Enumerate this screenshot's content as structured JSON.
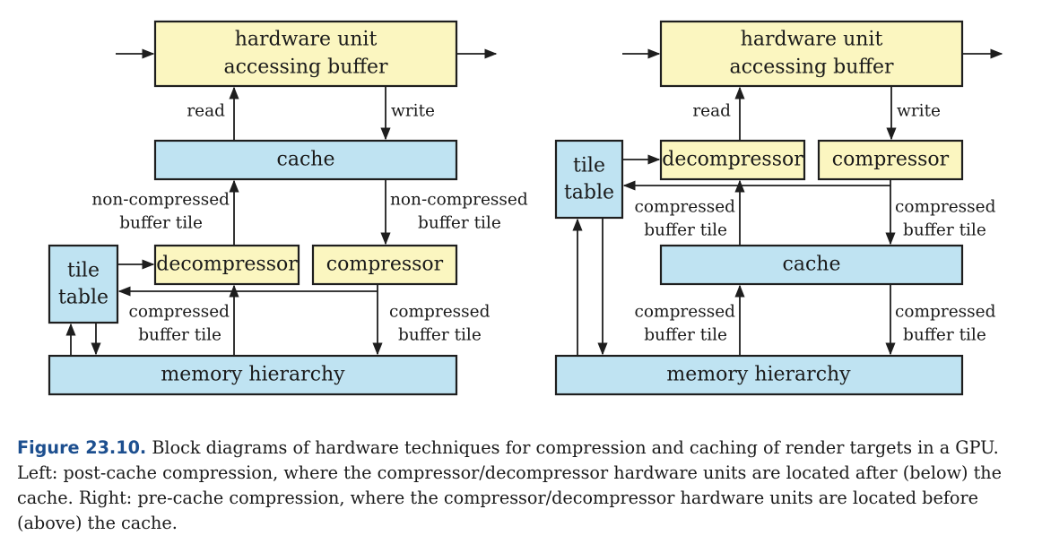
{
  "left": {
    "hw_unit": [
      "hardware unit",
      "accessing buffer"
    ],
    "read": "read",
    "write": "write",
    "cache": "cache",
    "noncomp_left": [
      "non-compressed",
      "buffer tile"
    ],
    "noncomp_right": [
      "non-compressed",
      "buffer tile"
    ],
    "tile_table": [
      "tile",
      "table"
    ],
    "decompressor": "decompressor",
    "compressor": "compressor",
    "comp_left": [
      "compressed",
      "buffer tile"
    ],
    "comp_right": [
      "compressed",
      "buffer tile"
    ],
    "memory": "memory hierarchy"
  },
  "right": {
    "hw_unit": [
      "hardware unit",
      "accessing buffer"
    ],
    "read": "read",
    "write": "write",
    "tile_table": [
      "tile",
      "table"
    ],
    "decompressor": "decompressor",
    "compressor": "compressor",
    "comp_upper_left": [
      "compressed",
      "buffer tile"
    ],
    "comp_upper_right": [
      "compressed",
      "buffer tile"
    ],
    "cache": "cache",
    "comp_lower_left": [
      "compressed",
      "buffer tile"
    ],
    "comp_lower_right": [
      "compressed",
      "buffer tile"
    ],
    "memory": "memory hierarchy"
  },
  "caption": {
    "label": "Figure 23.10.",
    "text": "Block diagrams of hardware techniques for compression and caching of render targets in a GPU. Left: post-cache compression, where the compressor/decompressor hardware units are located after (below) the cache. Right: pre-cache compression, where the compressor/decompressor hardware units are located before (above) the cache."
  },
  "colors": {
    "yellow_box": "#fbf6c0",
    "blue_box": "#bfe3f2",
    "caption_label": "#1d4f8f"
  }
}
